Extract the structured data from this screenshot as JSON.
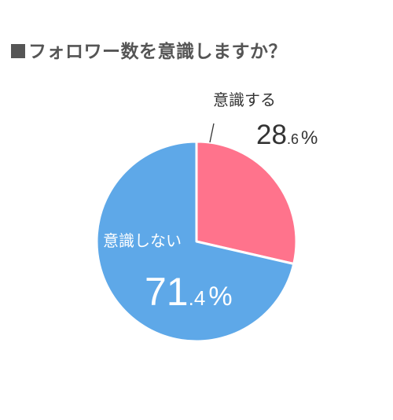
{
  "chart_data": {
    "type": "pie",
    "title": "フォロワー数を意識しますか？",
    "slices": [
      {
        "label": "意識する",
        "value": 28.6,
        "int_part": "28",
        "dec_part": ".6",
        "unit": "%",
        "color": "#ff738c"
      },
      {
        "label": "意識しない",
        "value": 71.4,
        "int_part": "71",
        "dec_part": ".4",
        "unit": "%",
        "color": "#5ea8e8"
      }
    ]
  }
}
